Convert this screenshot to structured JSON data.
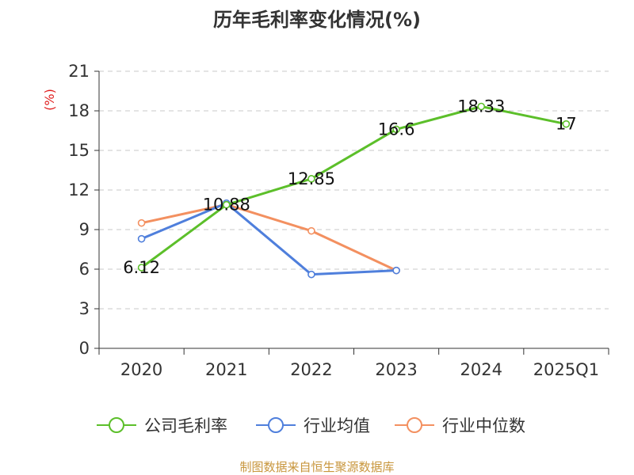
{
  "chart_data": {
    "type": "line",
    "title": "历年毛利率变化情况(%)",
    "ylabel": "(%)",
    "xlabel": "",
    "ylim": [
      0,
      21
    ],
    "yticks": [
      0,
      3,
      6,
      9,
      12,
      15,
      18,
      21
    ],
    "categories": [
      "2020",
      "2021",
      "2022",
      "2023",
      "2024",
      "2025Q1"
    ],
    "grid": true,
    "legend_position": "bottom",
    "series": [
      {
        "name": "公司毛利率",
        "color": "#5cbf2a",
        "values": [
          6.12,
          10.88,
          12.85,
          16.6,
          18.33,
          17
        ],
        "labels": [
          "6.12",
          "10.88",
          "12.85",
          "16.6",
          "18.33",
          "17"
        ]
      },
      {
        "name": "行业均值",
        "color": "#4f7fdc",
        "values": [
          8.3,
          11.0,
          5.6,
          5.9,
          null,
          null
        ]
      },
      {
        "name": "行业中位数",
        "color": "#f39060",
        "values": [
          9.5,
          10.9,
          8.9,
          5.9,
          null,
          null
        ]
      }
    ],
    "source": "制图数据来自恒生聚源数据库"
  }
}
